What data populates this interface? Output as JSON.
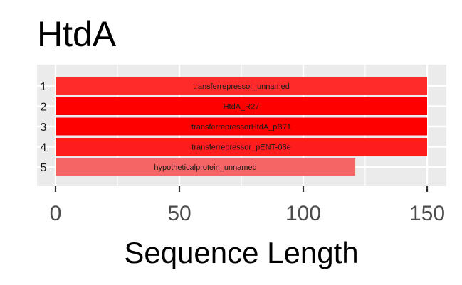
{
  "chart_data": {
    "type": "bar",
    "orientation": "horizontal",
    "title": "HtdA",
    "xlabel": "Sequence Length",
    "ylabel": "",
    "xlim": [
      -1,
      158
    ],
    "x_ticks": [
      0,
      50,
      100,
      150
    ],
    "grid": true,
    "categories": [
      "1",
      "2",
      "3",
      "4",
      "5"
    ],
    "bar_labels": [
      "transferrepressor_unnamed",
      "HtdA_R27",
      "transferrepressorHtdA_pB71",
      "transferrepressor_pENT-08e",
      "hypotheticalprotein_unnamed"
    ],
    "values": [
      150,
      150,
      150,
      150,
      121
    ],
    "bar_colors": [
      "#ff2a2a",
      "#ff0000",
      "#ff0000",
      "#ff1c1c",
      "#f56565"
    ],
    "panel_color": "#ebebeb",
    "gridline_color": "#ffffff"
  }
}
